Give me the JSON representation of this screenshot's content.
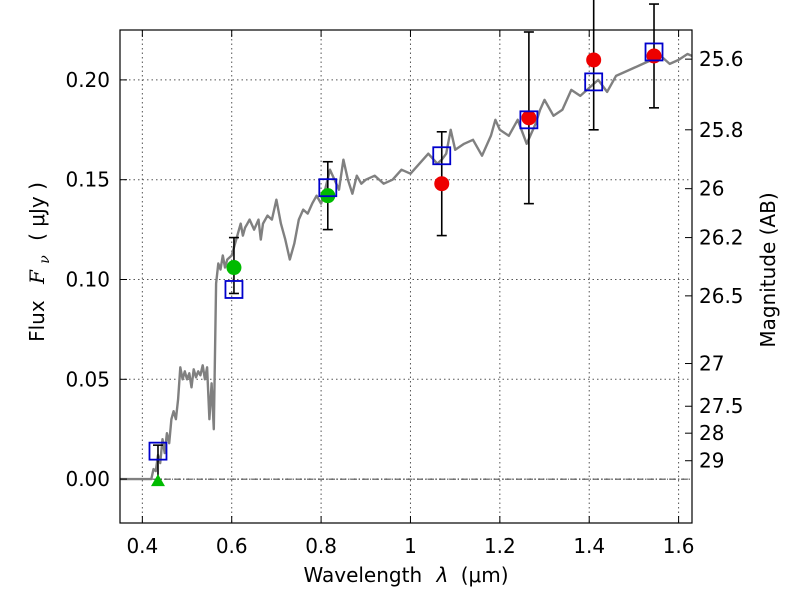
{
  "chart_data": {
    "type": "scatter",
    "xlabel_text": "Wavelength",
    "xlabel_lambda": "λ",
    "xlabel_unit": "(μm)",
    "ylabel_text": "Flux",
    "ylabel_symbol": "F",
    "ylabel_sub": "ν",
    "ylabel_unit": "( μJy )",
    "y2label": "Magnitude (AB)",
    "xlim": [
      0.35,
      1.63
    ],
    "ylim": [
      -0.022,
      0.225
    ],
    "grid": true,
    "x_ticks": [
      0.4,
      0.6,
      0.8,
      1.0,
      1.2,
      1.4,
      1.6
    ],
    "x_tick_labels": [
      "0.4",
      "0.6",
      "0.8",
      "1",
      "1.2",
      "1.4",
      "1.6"
    ],
    "y_ticks": [
      0.0,
      0.05,
      0.1,
      0.15,
      0.2
    ],
    "y_tick_labels": [
      "0.00",
      "0.05",
      "0.10",
      "0.15",
      "0.20"
    ],
    "y2_ticks": [
      {
        "label": "25.6",
        "flux": 0.2104
      },
      {
        "label": "25.8",
        "flux": 0.175
      },
      {
        "label": "26",
        "flux": 0.1455
      },
      {
        "label": "26.2",
        "flux": 0.121
      },
      {
        "label": "26.5",
        "flux": 0.0918
      },
      {
        "label": "27",
        "flux": 0.0579
      },
      {
        "label": "27.5",
        "flux": 0.0365
      },
      {
        "label": "28",
        "flux": 0.023
      },
      {
        "label": "29",
        "flux": 0.0092
      }
    ],
    "zero_line": 0.0,
    "colors": {
      "model": "#808080",
      "model_phot": "#0000cc",
      "detection_green": "#00bb00",
      "detection_red": "#ee0000",
      "errorbar": "#000000",
      "grid": "#555555"
    },
    "model_sed": {
      "name": "model spectrum",
      "x": [
        0.35,
        0.4,
        0.42,
        0.425,
        0.43,
        0.435,
        0.44,
        0.445,
        0.45,
        0.455,
        0.46,
        0.465,
        0.47,
        0.475,
        0.48,
        0.485,
        0.49,
        0.495,
        0.5,
        0.505,
        0.51,
        0.515,
        0.52,
        0.525,
        0.53,
        0.535,
        0.54,
        0.545,
        0.55,
        0.555,
        0.56,
        0.565,
        0.57,
        0.575,
        0.58,
        0.585,
        0.59,
        0.6,
        0.61,
        0.62,
        0.625,
        0.63,
        0.635,
        0.64,
        0.65,
        0.66,
        0.665,
        0.67,
        0.68,
        0.69,
        0.7,
        0.71,
        0.72,
        0.73,
        0.74,
        0.75,
        0.76,
        0.77,
        0.78,
        0.79,
        0.8,
        0.81,
        0.82,
        0.83,
        0.84,
        0.85,
        0.86,
        0.87,
        0.88,
        0.89,
        0.9,
        0.92,
        0.94,
        0.96,
        0.98,
        1.0,
        1.02,
        1.04,
        1.06,
        1.07,
        1.08,
        1.09,
        1.1,
        1.12,
        1.14,
        1.16,
        1.18,
        1.19,
        1.2,
        1.22,
        1.24,
        1.26,
        1.28,
        1.29,
        1.3,
        1.32,
        1.34,
        1.36,
        1.38,
        1.4,
        1.42,
        1.44,
        1.46,
        1.48,
        1.5,
        1.52,
        1.54,
        1.56,
        1.58,
        1.6,
        1.62,
        1.63
      ],
      "y": [
        0.0,
        0.0,
        0.0,
        0.005,
        0.004,
        0.012,
        0.008,
        0.02,
        0.013,
        0.023,
        0.018,
        0.03,
        0.034,
        0.03,
        0.04,
        0.056,
        0.05,
        0.054,
        0.05,
        0.053,
        0.046,
        0.055,
        0.051,
        0.054,
        0.052,
        0.057,
        0.05,
        0.056,
        0.03,
        0.048,
        0.025,
        0.098,
        0.108,
        0.105,
        0.112,
        0.106,
        0.11,
        0.112,
        0.12,
        0.128,
        0.122,
        0.126,
        0.128,
        0.13,
        0.125,
        0.13,
        0.12,
        0.128,
        0.132,
        0.13,
        0.14,
        0.128,
        0.12,
        0.11,
        0.118,
        0.13,
        0.135,
        0.133,
        0.138,
        0.142,
        0.138,
        0.146,
        0.155,
        0.15,
        0.145,
        0.16,
        0.15,
        0.143,
        0.152,
        0.148,
        0.15,
        0.152,
        0.148,
        0.15,
        0.155,
        0.153,
        0.158,
        0.163,
        0.158,
        0.16,
        0.163,
        0.175,
        0.165,
        0.168,
        0.17,
        0.162,
        0.172,
        0.18,
        0.175,
        0.172,
        0.18,
        0.168,
        0.178,
        0.185,
        0.19,
        0.182,
        0.185,
        0.195,
        0.192,
        0.196,
        0.2,
        0.194,
        0.202,
        0.204,
        0.206,
        0.208,
        0.21,
        0.212,
        0.208,
        0.21,
        0.213,
        0.212
      ]
    },
    "model_photometry": {
      "name": "model photometry (open squares)",
      "x": [
        0.435,
        0.605,
        0.815,
        1.07,
        1.265,
        1.41,
        1.545
      ],
      "y": [
        0.014,
        0.095,
        0.146,
        0.162,
        0.18,
        0.199,
        0.214
      ]
    },
    "observed_detections": [
      {
        "x": 0.605,
        "y": 0.106,
        "err_lo": 0.013,
        "err_hi": 0.015,
        "color": "green"
      },
      {
        "x": 0.815,
        "y": 0.142,
        "err_lo": 0.017,
        "err_hi": 0.017,
        "color": "green"
      },
      {
        "x": 1.07,
        "y": 0.148,
        "err_lo": 0.026,
        "err_hi": 0.026,
        "color": "red"
      },
      {
        "x": 1.265,
        "y": 0.181,
        "err_lo": 0.043,
        "err_hi": 0.043,
        "color": "red"
      },
      {
        "x": 1.41,
        "y": 0.21,
        "err_lo": 0.035,
        "err_hi": 0.035,
        "color": "red"
      },
      {
        "x": 1.545,
        "y": 0.212,
        "err_lo": 0.026,
        "err_hi": 0.026,
        "color": "red"
      }
    ],
    "upper_limits": [
      {
        "x": 0.435,
        "y": -0.001,
        "err_lo": 0.0,
        "err_hi": 0.018,
        "color": "green",
        "marker": "triangle"
      }
    ]
  }
}
